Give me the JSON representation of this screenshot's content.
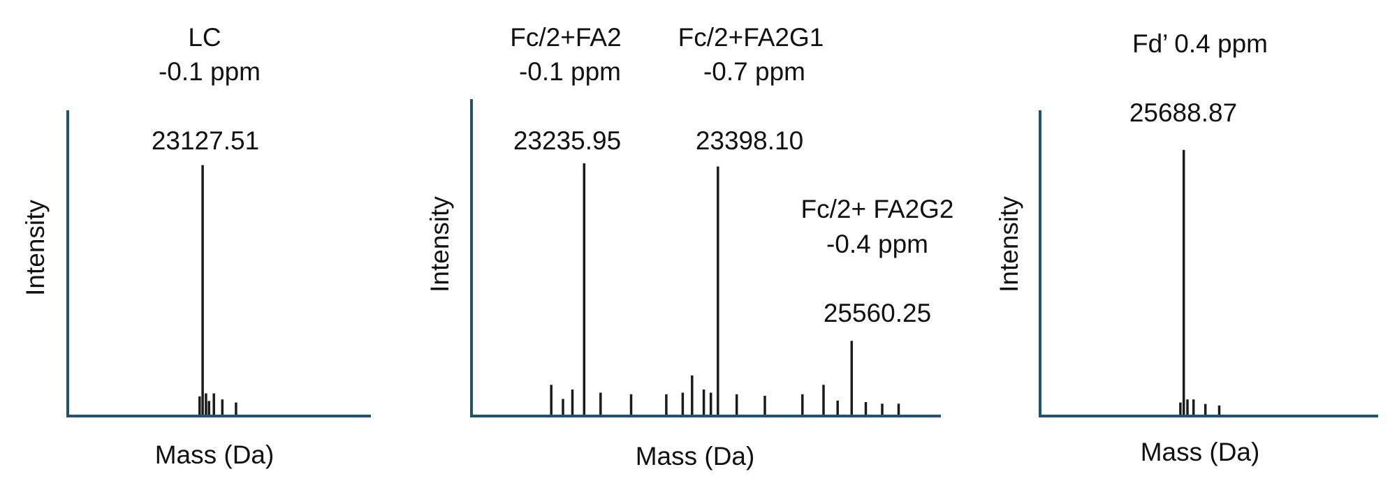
{
  "figure": {
    "axis_color": "#1f5470",
    "stick_color": "#1a1a1a"
  },
  "chart_data": [
    {
      "type": "bar",
      "xlabel": "Mass (Da)",
      "ylabel": "Intensity",
      "x_range": [
        0,
        100
      ],
      "ylim": [
        0,
        100
      ],
      "peaks": [
        {
          "x": 43.5,
          "y": 6
        },
        {
          "x": 44.5,
          "y": 82
        },
        {
          "x": 45.6,
          "y": 7
        },
        {
          "x": 46.6,
          "y": 4.5
        },
        {
          "x": 48.2,
          "y": 7
        },
        {
          "x": 51,
          "y": 5
        },
        {
          "x": 55.5,
          "y": 4
        }
      ],
      "annotations": [
        {
          "label": "LC",
          "ppm": "-0.1 ppm",
          "mass": "23127.51"
        }
      ]
    },
    {
      "type": "bar",
      "xlabel": "Mass (Da)",
      "ylabel": "Intensity",
      "x_range": [
        0,
        100
      ],
      "ylim": [
        0,
        100
      ],
      "peaks": [
        {
          "x": 17,
          "y": 9.5
        },
        {
          "x": 19.5,
          "y": 5
        },
        {
          "x": 21.5,
          "y": 8
        },
        {
          "x": 24,
          "y": 80
        },
        {
          "x": 27.5,
          "y": 7
        },
        {
          "x": 34,
          "y": 6.5
        },
        {
          "x": 41.5,
          "y": 6.5
        },
        {
          "x": 45,
          "y": 7
        },
        {
          "x": 47,
          "y": 12.5
        },
        {
          "x": 49.5,
          "y": 8
        },
        {
          "x": 51,
          "y": 7
        },
        {
          "x": 52.5,
          "y": 79
        },
        {
          "x": 56.5,
          "y": 6.5
        },
        {
          "x": 62.5,
          "y": 6
        },
        {
          "x": 70.5,
          "y": 6.5
        },
        {
          "x": 75,
          "y": 9.5
        },
        {
          "x": 78,
          "y": 4.5
        },
        {
          "x": 81,
          "y": 23.5
        },
        {
          "x": 84,
          "y": 4
        },
        {
          "x": 87.5,
          "y": 3.5
        },
        {
          "x": 91,
          "y": 3.5
        }
      ],
      "annotations": [
        {
          "label": "Fc/2+FA2",
          "ppm": "-0.1 ppm",
          "mass": "23235.95"
        },
        {
          "label": "Fc/2+FA2G1",
          "ppm": "-0.7 ppm",
          "mass": "23398.10"
        },
        {
          "label": "Fc/2+ FA2G2",
          "ppm": "-0.4 ppm",
          "mass": "25560.25"
        }
      ]
    },
    {
      "type": "bar",
      "xlabel": "Mass (Da)",
      "ylabel": "Intensity",
      "x_range": [
        0,
        100
      ],
      "ylim": [
        0,
        100
      ],
      "peaks": [
        {
          "x": 41.5,
          "y": 4
        },
        {
          "x": 42.5,
          "y": 87
        },
        {
          "x": 43.6,
          "y": 5
        },
        {
          "x": 45.4,
          "y": 5
        },
        {
          "x": 48.9,
          "y": 3.5
        },
        {
          "x": 53,
          "y": 3
        }
      ],
      "annotations": [
        {
          "label": "Fd’ 0.4 ppm",
          "mass": "25688.87"
        }
      ]
    }
  ]
}
